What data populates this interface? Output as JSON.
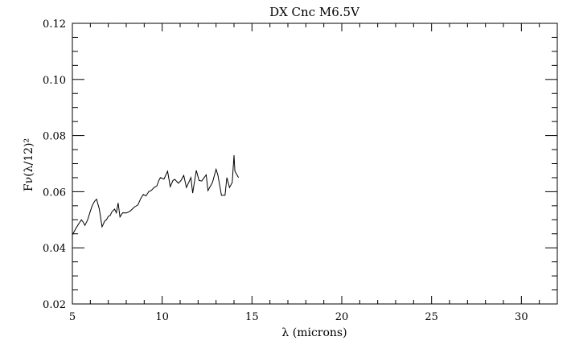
{
  "chart_data": {
    "type": "line",
    "title": "DX Cnc M6.5V",
    "xlabel": "λ (microns)",
    "ylabel": "Fν(λ/12)²",
    "xlim": [
      5,
      32
    ],
    "ylim": [
      0.02,
      0.12
    ],
    "xticks": [
      5,
      10,
      15,
      20,
      25,
      30
    ],
    "xtick_labels": [
      "5",
      "10",
      "15",
      "20",
      "25",
      "30"
    ],
    "yticks": [
      0.02,
      0.04,
      0.06,
      0.08,
      0.1,
      0.12
    ],
    "ytick_labels": [
      "0.02",
      "0.04",
      "0.06",
      "0.08",
      "0.10",
      "0.12"
    ],
    "grid": false,
    "line_color": "#000000",
    "series": [
      {
        "x": [
          5.0,
          5.2,
          5.35,
          5.5,
          5.6,
          5.7,
          5.85,
          6.0,
          6.1,
          6.25,
          6.35,
          6.5,
          6.65,
          6.8,
          6.9,
          7.0,
          7.1,
          7.2,
          7.35,
          7.45,
          7.55,
          7.65,
          7.8,
          8.0,
          8.2,
          8.45,
          8.65,
          8.8,
          8.95,
          9.1,
          9.25,
          9.4,
          9.55,
          9.7,
          9.8,
          9.9,
          10.1,
          10.3,
          10.45,
          10.6,
          10.7,
          10.9,
          11.05,
          11.2,
          11.35,
          11.6,
          11.7,
          11.9,
          12.05,
          12.2,
          12.45,
          12.55,
          12.8,
          13.0,
          13.1,
          13.3,
          13.5,
          13.6,
          13.75,
          13.9,
          14.0,
          14.05,
          14.25
        ],
        "y": [
          0.0446,
          0.047,
          0.0485,
          0.05,
          0.0492,
          0.048,
          0.05,
          0.053,
          0.055,
          0.0567,
          0.0573,
          0.0538,
          0.0475,
          0.0495,
          0.05,
          0.0512,
          0.0515,
          0.0528,
          0.0538,
          0.0525,
          0.056,
          0.051,
          0.0525,
          0.0524,
          0.053,
          0.0545,
          0.0553,
          0.0575,
          0.059,
          0.0585,
          0.06,
          0.0605,
          0.0615,
          0.062,
          0.0638,
          0.065,
          0.0645,
          0.0673,
          0.0618,
          0.064,
          0.0644,
          0.063,
          0.064,
          0.0658,
          0.0615,
          0.065,
          0.0595,
          0.0676,
          0.064,
          0.0638,
          0.066,
          0.0604,
          0.0633,
          0.068,
          0.066,
          0.0587,
          0.0587,
          0.065,
          0.0615,
          0.0633,
          0.073,
          0.0673,
          0.065
        ]
      }
    ]
  }
}
